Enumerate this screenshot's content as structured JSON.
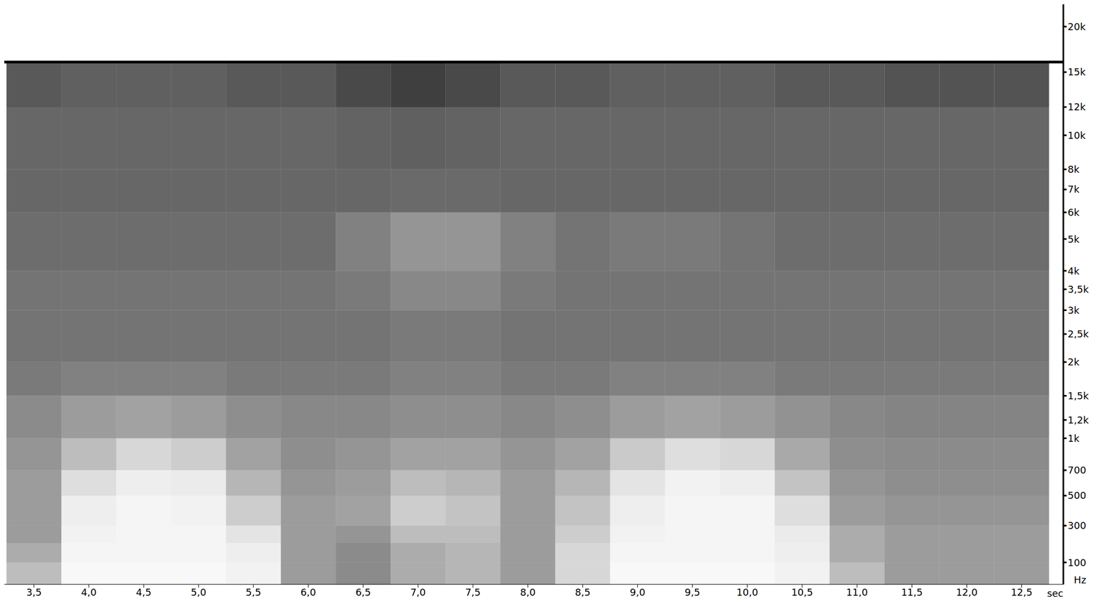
{
  "chart_data": {
    "type": "spectrogram",
    "x_label": "sec",
    "y_label": "Hz",
    "color": "#000000",
    "tick_labels": true,
    "xlim": [
      3.23,
      12.88
    ],
    "xticks": [
      {
        "value": 3.5,
        "label": "3,5"
      },
      {
        "value": 4,
        "label": "4,0"
      },
      {
        "value": 4.5,
        "label": "4,5"
      },
      {
        "value": 5,
        "label": "5,0"
      },
      {
        "value": 5.5,
        "label": "5,5"
      },
      {
        "value": 6,
        "label": "6,0"
      },
      {
        "value": 6.5,
        "label": "6,5"
      },
      {
        "value": 7,
        "label": "7,0"
      },
      {
        "value": 7.5,
        "label": "7,5"
      },
      {
        "value": 8,
        "label": "8,0"
      },
      {
        "value": 8.5,
        "label": "8,5"
      },
      {
        "value": 9,
        "label": "9,0"
      },
      {
        "value": 9.5,
        "label": "9,5"
      },
      {
        "value": 10,
        "label": "10,0"
      },
      {
        "value": 10.5,
        "label": "10,5"
      },
      {
        "value": 11,
        "label": "11,0"
      },
      {
        "value": 11.5,
        "label": "11,5"
      },
      {
        "value": 12,
        "label": "12,0"
      },
      {
        "value": 12.5,
        "label": "12,5"
      }
    ],
    "ylim": [
      0,
      23000
    ],
    "yticks": [
      100,
      300,
      500,
      700,
      {
        "value": 1000,
        "label": "1k"
      },
      {
        "value": 1200,
        "label": "1,2k"
      },
      {
        "value": 1500,
        "label": "1,5k"
      },
      {
        "value": 2000,
        "label": "2k"
      },
      {
        "value": 2500,
        "label": "2,5k"
      },
      {
        "value": 3000,
        "label": "3k"
      },
      {
        "value": 3500,
        "label": "3,5k"
      },
      {
        "value": 4000,
        "label": "4k"
      },
      {
        "value": 5000,
        "label": "5k"
      },
      {
        "value": 6000,
        "label": "6k"
      },
      {
        "value": 7000,
        "label": "7k"
      },
      {
        "value": 8000,
        "label": "8k"
      },
      {
        "value": 10000,
        "label": "10k"
      },
      {
        "value": 12000,
        "label": "12k"
      },
      {
        "value": 15000,
        "label": "15k"
      },
      {
        "value": 20000,
        "label": "20k"
      }
    ],
    "x_bins": [
      3.25,
      3.75,
      4.25,
      4.75,
      5.25,
      5.75,
      6.25,
      6.75,
      7.25,
      7.75,
      8.25,
      8.75,
      9.25,
      9.75,
      10.25,
      10.75,
      11.25,
      11.75,
      12.25,
      12.75
    ],
    "y_bins": [
      0,
      100,
      200,
      300,
      500,
      700,
      1000,
      1500,
      2000,
      3000,
      4000,
      6000,
      8000,
      12000,
      16000
    ],
    "cells": [
      [
        0.2,
        0.02,
        0.02,
        0.02,
        0.04,
        0.3,
        0.35,
        0.25,
        0.22,
        0.3,
        0.12,
        0.02,
        0.02,
        0.02,
        0.04,
        0.2,
        0.3,
        0.3,
        0.3
      ],
      [
        0.25,
        0.03,
        0.03,
        0.03,
        0.05,
        0.3,
        0.35,
        0.25,
        0.22,
        0.3,
        0.12,
        0.03,
        0.03,
        0.03,
        0.05,
        0.25,
        0.3,
        0.3,
        0.3
      ],
      [
        0.3,
        0.04,
        0.03,
        0.03,
        0.08,
        0.3,
        0.32,
        0.2,
        0.2,
        0.3,
        0.15,
        0.04,
        0.03,
        0.03,
        0.06,
        0.25,
        0.3,
        0.3,
        0.3
      ],
      [
        0.3,
        0.05,
        0.03,
        0.04,
        0.15,
        0.3,
        0.28,
        0.15,
        0.18,
        0.3,
        0.18,
        0.05,
        0.03,
        0.03,
        0.1,
        0.3,
        0.32,
        0.32,
        0.32
      ],
      [
        0.3,
        0.1,
        0.05,
        0.06,
        0.22,
        0.32,
        0.3,
        0.2,
        0.22,
        0.3,
        0.22,
        0.08,
        0.04,
        0.05,
        0.18,
        0.32,
        0.34,
        0.34,
        0.34
      ],
      [
        0.32,
        0.2,
        0.12,
        0.15,
        0.28,
        0.34,
        0.32,
        0.28,
        0.28,
        0.32,
        0.28,
        0.16,
        0.1,
        0.12,
        0.26,
        0.34,
        0.35,
        0.35,
        0.35
      ],
      [
        0.35,
        0.3,
        0.28,
        0.3,
        0.34,
        0.36,
        0.36,
        0.34,
        0.34,
        0.36,
        0.34,
        0.3,
        0.28,
        0.3,
        0.33,
        0.36,
        0.37,
        0.37,
        0.37
      ],
      [
        0.4,
        0.38,
        0.38,
        0.38,
        0.4,
        0.4,
        0.4,
        0.38,
        0.38,
        0.4,
        0.4,
        0.38,
        0.38,
        0.38,
        0.4,
        0.4,
        0.4,
        0.4,
        0.4
      ],
      [
        0.42,
        0.42,
        0.42,
        0.42,
        0.42,
        0.42,
        0.42,
        0.4,
        0.4,
        0.42,
        0.42,
        0.42,
        0.42,
        0.42,
        0.42,
        0.42,
        0.42,
        0.42,
        0.42
      ],
      [
        0.42,
        0.42,
        0.42,
        0.42,
        0.42,
        0.42,
        0.4,
        0.36,
        0.36,
        0.4,
        0.42,
        0.42,
        0.42,
        0.42,
        0.42,
        0.42,
        0.42,
        0.42,
        0.42
      ],
      [
        0.44,
        0.44,
        0.44,
        0.44,
        0.44,
        0.44,
        0.38,
        0.32,
        0.32,
        0.38,
        0.42,
        0.4,
        0.4,
        0.42,
        0.44,
        0.44,
        0.44,
        0.44,
        0.44
      ],
      [
        0.46,
        0.46,
        0.46,
        0.46,
        0.46,
        0.46,
        0.46,
        0.45,
        0.45,
        0.46,
        0.46,
        0.46,
        0.46,
        0.46,
        0.46,
        0.46,
        0.46,
        0.46,
        0.46
      ],
      [
        0.46,
        0.46,
        0.46,
        0.46,
        0.46,
        0.46,
        0.47,
        0.48,
        0.47,
        0.46,
        0.46,
        0.46,
        0.46,
        0.46,
        0.46,
        0.46,
        0.46,
        0.46,
        0.46
      ],
      [
        0.5,
        0.48,
        0.48,
        0.48,
        0.5,
        0.5,
        0.55,
        0.58,
        0.55,
        0.5,
        0.5,
        0.48,
        0.48,
        0.48,
        0.5,
        0.5,
        0.52,
        0.52,
        0.52
      ]
    ]
  }
}
